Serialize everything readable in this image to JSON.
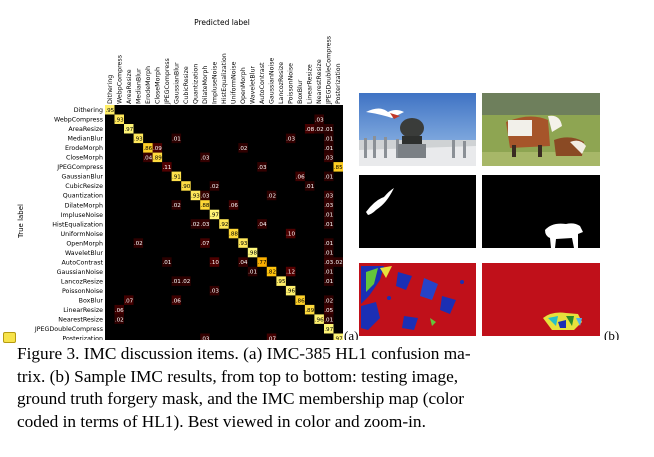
{
  "confusion_matrix": {
    "title": "Predicted label",
    "y_axis_label": "True label",
    "panel_label": "(a)",
    "classes": [
      "Dithering",
      "WebpCompress",
      "AreaResize",
      "MedianBlur",
      "ErodeMorph",
      "CloseMorph",
      "JPEGCompress",
      "GaussianBlur",
      "CubicResize",
      "Quantization",
      "DilateMorph",
      "ImpluseNoise",
      "HistEqualization",
      "UniformNoise",
      "OpenMorph",
      "WaveletBlur",
      "AutoContrast",
      "GaussianNoise",
      "LancozResize",
      "PoissonNoise",
      "BoxBlur",
      "LinearResize",
      "NearestResize",
      "JPEGDoubleCompress",
      "Posterization"
    ],
    "diagonal": [
      ".95",
      ".93",
      ".97",
      ".93",
      ".86",
      ".89",
      ".11",
      ".91",
      ".90",
      ".93",
      ".88",
      ".97",
      ".92",
      ".88",
      ".93",
      ".98",
      ".77",
      ".82",
      ".95",
      ".96",
      ".86",
      ".89",
      ".96",
      ".97",
      ".97"
    ],
    "off_diagonal": [
      {
        "row": 1,
        "col": 22,
        "value": ".03"
      },
      {
        "row": 2,
        "col": 21,
        "value": ".08"
      },
      {
        "row": 2,
        "col": 22,
        "value": ".02"
      },
      {
        "row": 2,
        "col": 23,
        "value": ".01"
      },
      {
        "row": 3,
        "col": 7,
        "value": ".01"
      },
      {
        "row": 3,
        "col": 19,
        "value": ".03"
      },
      {
        "row": 3,
        "col": 23,
        "value": ".01"
      },
      {
        "row": 4,
        "col": 5,
        "value": ".09"
      },
      {
        "row": 4,
        "col": 14,
        "value": ".02"
      },
      {
        "row": 4,
        "col": 23,
        "value": ".01"
      },
      {
        "row": 5,
        "col": 4,
        "value": ".04"
      },
      {
        "row": 5,
        "col": 10,
        "value": ".03"
      },
      {
        "row": 5,
        "col": 23,
        "value": ".03"
      },
      {
        "row": 6,
        "col": 16,
        "value": ".03"
      },
      {
        "row": 6,
        "col": 24,
        "value": ".85"
      },
      {
        "row": 7,
        "col": 20,
        "value": ".06"
      },
      {
        "row": 7,
        "col": 23,
        "value": ".01"
      },
      {
        "row": 8,
        "col": 11,
        "value": ".02"
      },
      {
        "row": 8,
        "col": 21,
        "value": ".01"
      },
      {
        "row": 9,
        "col": 10,
        "value": ".03"
      },
      {
        "row": 9,
        "col": 17,
        "value": ".02"
      },
      {
        "row": 9,
        "col": 23,
        "value": ".03"
      },
      {
        "row": 10,
        "col": 7,
        "value": ".02"
      },
      {
        "row": 10,
        "col": 13,
        "value": ".06"
      },
      {
        "row": 10,
        "col": 23,
        "value": ".03"
      },
      {
        "row": 11,
        "col": 23,
        "value": ".01"
      },
      {
        "row": 12,
        "col": 9,
        "value": ".02"
      },
      {
        "row": 12,
        "col": 10,
        "value": ".03"
      },
      {
        "row": 12,
        "col": 16,
        "value": ".04"
      },
      {
        "row": 12,
        "col": 23,
        "value": ".01"
      },
      {
        "row": 13,
        "col": 19,
        "value": ".10"
      },
      {
        "row": 14,
        "col": 3,
        "value": ".02"
      },
      {
        "row": 14,
        "col": 10,
        "value": ".07"
      },
      {
        "row": 14,
        "col": 23,
        "value": ".01"
      },
      {
        "row": 15,
        "col": 23,
        "value": ".01"
      },
      {
        "row": 16,
        "col": 6,
        "value": ".01"
      },
      {
        "row": 16,
        "col": 11,
        "value": ".10"
      },
      {
        "row": 16,
        "col": 14,
        "value": ".04"
      },
      {
        "row": 16,
        "col": 23,
        "value": ".03"
      },
      {
        "row": 16,
        "col": 24,
        "value": ".02"
      },
      {
        "row": 17,
        "col": 15,
        "value": ".01"
      },
      {
        "row": 17,
        "col": 19,
        "value": ".12"
      },
      {
        "row": 17,
        "col": 23,
        "value": ".01"
      },
      {
        "row": 18,
        "col": 7,
        "value": ".01"
      },
      {
        "row": 18,
        "col": 8,
        "value": ".02"
      },
      {
        "row": 18,
        "col": 23,
        "value": ".01"
      },
      {
        "row": 19,
        "col": 11,
        "value": ".03"
      },
      {
        "row": 20,
        "col": 2,
        "value": ".07"
      },
      {
        "row": 20,
        "col": 7,
        "value": ".06"
      },
      {
        "row": 20,
        "col": 23,
        "value": ".02"
      },
      {
        "row": 21,
        "col": 1,
        "value": ".06"
      },
      {
        "row": 21,
        "col": 23,
        "value": ".05"
      },
      {
        "row": 22,
        "col": 1,
        "value": ".02"
      },
      {
        "row": 22,
        "col": 23,
        "value": ".01"
      },
      {
        "row": 24,
        "col": 10,
        "value": ".03"
      },
      {
        "row": 24,
        "col": 17,
        "value": ".07"
      }
    ]
  },
  "samples": {
    "panel_label": "(b)",
    "columns": [
      {
        "name": "bird-monument"
      },
      {
        "name": "cows-field"
      }
    ]
  },
  "caption": {
    "line1": "Figure 3. IMC discussion items. (a) IMC-385 HL1 confusion ma-",
    "line2": "trix. (b) Sample IMC results, from top to bottom: testing image,",
    "line3": "ground truth forgery mask, and the IMC membership map (color",
    "line4": "coded in terms of HL1). Best viewed in color and zoom-in."
  }
}
